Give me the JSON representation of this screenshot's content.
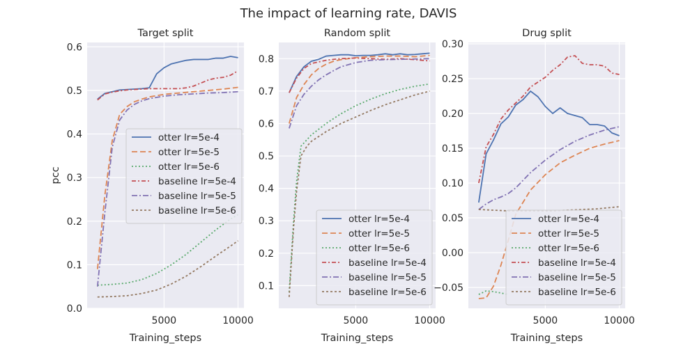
{
  "figure": {
    "title": "The impact of learning rate, DAVIS"
  },
  "chart_data": [
    {
      "type": "line",
      "title": "Target split",
      "xlabel": "Training_steps",
      "ylabel": "pcc",
      "xlim": [
        -200,
        10400
      ],
      "ylim": [
        0.0,
        0.61
      ],
      "xticks": [
        5000,
        10000
      ],
      "xtick_labels": [
        "5000",
        "10000"
      ],
      "yticks": [
        0.0,
        0.1,
        0.2,
        0.3,
        0.4,
        0.5,
        0.6
      ],
      "ytick_labels": [
        "0.0",
        "0.1",
        "0.2",
        "0.3",
        "0.4",
        "0.5",
        "0.6"
      ],
      "grid": true,
      "legend_position": "center-right",
      "series": [
        {
          "name": "otter lr=5e-4",
          "color": "#4c72b0",
          "dash": "",
          "x": [
            500,
            1000,
            1500,
            2000,
            2500,
            3000,
            3500,
            4000,
            4500,
            5000,
            5500,
            6000,
            6500,
            7000,
            7500,
            8000,
            8500,
            9000,
            9500,
            10000
          ],
          "y": [
            0.48,
            0.493,
            0.497,
            0.501,
            0.502,
            0.503,
            0.504,
            0.506,
            0.538,
            0.552,
            0.561,
            0.565,
            0.569,
            0.571,
            0.571,
            0.571,
            0.574,
            0.574,
            0.578,
            0.575
          ]
        },
        {
          "name": "otter lr=5e-5",
          "color": "#dd8452",
          "dash": "8,4",
          "x": [
            500,
            1000,
            1500,
            2000,
            2500,
            3000,
            3500,
            4000,
            5000,
            6000,
            7000,
            8000,
            9000,
            10000
          ],
          "y": [
            0.09,
            0.26,
            0.385,
            0.445,
            0.463,
            0.474,
            0.48,
            0.485,
            0.491,
            0.494,
            0.497,
            0.5,
            0.503,
            0.507
          ]
        },
        {
          "name": "otter lr=5e-6",
          "color": "#55a868",
          "dash": "2,3",
          "x": [
            500,
            1500,
            2500,
            3500,
            4500,
            5500,
            6500,
            7500,
            8500,
            9500,
            10000
          ],
          "y": [
            0.053,
            0.055,
            0.058,
            0.066,
            0.08,
            0.1,
            0.124,
            0.152,
            0.18,
            0.205,
            0.215
          ]
        },
        {
          "name": "baseline lr=5e-4",
          "color": "#c44e52",
          "dash": "6,3,2,3",
          "x": [
            500,
            1000,
            1500,
            2000,
            2500,
            3000,
            3500,
            4000,
            5000,
            6000,
            6500,
            7000,
            7500,
            8000,
            8500,
            9000,
            9500,
            10000
          ],
          "y": [
            0.478,
            0.492,
            0.496,
            0.499,
            0.501,
            0.502,
            0.503,
            0.504,
            0.504,
            0.504,
            0.506,
            0.51,
            0.517,
            0.524,
            0.528,
            0.53,
            0.535,
            0.545
          ]
        },
        {
          "name": "baseline lr=5e-5",
          "color": "#8172b3",
          "dash": "8,3,2,3",
          "x": [
            500,
            1000,
            1500,
            2000,
            2500,
            3000,
            3500,
            4000,
            5000,
            6000,
            7000,
            8000,
            9000,
            10000
          ],
          "y": [
            0.05,
            0.22,
            0.37,
            0.432,
            0.455,
            0.468,
            0.476,
            0.481,
            0.487,
            0.49,
            0.492,
            0.494,
            0.495,
            0.497
          ]
        },
        {
          "name": "baseline lr=5e-6",
          "color": "#937860",
          "dash": "3,3",
          "x": [
            500,
            1500,
            2500,
            3500,
            4500,
            5500,
            6500,
            7500,
            8500,
            9500,
            10000
          ],
          "y": [
            0.026,
            0.027,
            0.029,
            0.034,
            0.042,
            0.056,
            0.074,
            0.096,
            0.12,
            0.143,
            0.155
          ]
        }
      ]
    },
    {
      "type": "line",
      "title": "Random split",
      "xlabel": "Training_steps",
      "ylabel": "",
      "xlim": [
        -200,
        10400
      ],
      "ylim": [
        0.03,
        0.85
      ],
      "xticks": [
        5000,
        10000
      ],
      "xtick_labels": [
        "5000",
        "10000"
      ],
      "yticks": [
        0.1,
        0.2,
        0.3,
        0.4,
        0.5,
        0.6,
        0.7,
        0.8
      ],
      "ytick_labels": [
        "0.1",
        "0.2",
        "0.3",
        "0.4",
        "0.5",
        "0.6",
        "0.7",
        "0.8"
      ],
      "grid": true,
      "legend_position": "lower-right",
      "series": [
        {
          "name": "otter lr=5e-4",
          "color": "#4c72b0",
          "dash": "",
          "x": [
            500,
            1000,
            1500,
            2000,
            2500,
            3000,
            3500,
            4000,
            4500,
            5000,
            5500,
            6000,
            6500,
            7000,
            7500,
            8000,
            8500,
            9000,
            9500,
            10000
          ],
          "y": [
            0.695,
            0.745,
            0.775,
            0.792,
            0.798,
            0.808,
            0.81,
            0.812,
            0.812,
            0.809,
            0.81,
            0.81,
            0.812,
            0.815,
            0.812,
            0.815,
            0.812,
            0.813,
            0.815,
            0.817
          ]
        },
        {
          "name": "otter lr=5e-5",
          "color": "#dd8452",
          "dash": "8,4",
          "x": [
            500,
            1000,
            1500,
            2000,
            2500,
            3000,
            3500,
            4000,
            5000,
            6000,
            7000,
            8000,
            9000,
            10000
          ],
          "y": [
            0.6,
            0.68,
            0.72,
            0.75,
            0.77,
            0.783,
            0.792,
            0.797,
            0.803,
            0.806,
            0.808,
            0.808,
            0.806,
            0.81
          ]
        },
        {
          "name": "otter lr=5e-6",
          "color": "#55a868",
          "dash": "2,3",
          "x": [
            500,
            800,
            1000,
            1300,
            1700,
            2000,
            3000,
            4000,
            5000,
            6000,
            7000,
            8000,
            9000,
            10000
          ],
          "y": [
            0.08,
            0.3,
            0.42,
            0.53,
            0.55,
            0.565,
            0.6,
            0.63,
            0.655,
            0.675,
            0.692,
            0.705,
            0.715,
            0.722
          ]
        },
        {
          "name": "baseline lr=5e-4",
          "color": "#c44e52",
          "dash": "6,3,2,3",
          "x": [
            500,
            1000,
            1500,
            2000,
            2500,
            3000,
            3500,
            4000,
            5000,
            6000,
            7000,
            8000,
            9000,
            10000
          ],
          "y": [
            0.695,
            0.74,
            0.77,
            0.785,
            0.79,
            0.795,
            0.798,
            0.8,
            0.802,
            0.8,
            0.798,
            0.8,
            0.797,
            0.793
          ]
        },
        {
          "name": "baseline lr=5e-5",
          "color": "#8172b3",
          "dash": "8,3,2,3",
          "x": [
            500,
            1000,
            1500,
            2000,
            2500,
            3000,
            3500,
            4000,
            5000,
            6000,
            7000,
            8000,
            9000,
            10000
          ],
          "y": [
            0.585,
            0.655,
            0.69,
            0.715,
            0.735,
            0.75,
            0.763,
            0.775,
            0.788,
            0.795,
            0.797,
            0.798,
            0.799,
            0.8
          ]
        },
        {
          "name": "baseline lr=5e-6",
          "color": "#937860",
          "dash": "3,3",
          "x": [
            500,
            800,
            1000,
            1300,
            1700,
            2000,
            3000,
            4000,
            5000,
            6000,
            7000,
            8000,
            9000,
            10000
          ],
          "y": [
            0.065,
            0.28,
            0.39,
            0.5,
            0.53,
            0.545,
            0.575,
            0.6,
            0.62,
            0.64,
            0.658,
            0.673,
            0.688,
            0.7
          ]
        }
      ]
    },
    {
      "type": "line",
      "title": "Drug split",
      "xlabel": "Training_steps",
      "ylabel": "",
      "xlim": [
        -200,
        10400
      ],
      "ylim": [
        -0.08,
        0.302
      ],
      "xticks": [
        5000,
        10000
      ],
      "xtick_labels": [
        "5000",
        "10000"
      ],
      "yticks": [
        -0.05,
        0.0,
        0.05,
        0.1,
        0.15,
        0.2,
        0.25,
        0.3
      ],
      "ytick_labels": [
        "−0.05",
        "0.00",
        "0.05",
        "0.10",
        "0.15",
        "0.20",
        "0.25",
        "0.30"
      ],
      "grid": true,
      "legend_position": "lower-right",
      "series": [
        {
          "name": "otter lr=5e-4",
          "color": "#4c72b0",
          "dash": "",
          "x": [
            500,
            1000,
            1500,
            2000,
            2500,
            3000,
            3500,
            4000,
            4500,
            5000,
            5500,
            6000,
            6500,
            7000,
            7500,
            8000,
            8500,
            9000,
            9500,
            10000
          ],
          "y": [
            0.072,
            0.142,
            0.162,
            0.185,
            0.195,
            0.212,
            0.22,
            0.232,
            0.224,
            0.21,
            0.2,
            0.208,
            0.2,
            0.197,
            0.194,
            0.184,
            0.184,
            0.182,
            0.172,
            0.168
          ]
        },
        {
          "name": "otter lr=5e-5",
          "color": "#dd8452",
          "dash": "8,4",
          "x": [
            500,
            1000,
            1500,
            2000,
            2500,
            3000,
            4000,
            5000,
            6000,
            7000,
            8000,
            9000,
            10000
          ],
          "y": [
            -0.066,
            -0.065,
            -0.048,
            -0.018,
            0.018,
            0.055,
            0.09,
            0.112,
            0.129,
            0.14,
            0.15,
            0.156,
            0.161
          ]
        },
        {
          "name": "otter lr=5e-6",
          "color": "#55a868",
          "dash": "2,3",
          "x": [
            500,
            1000,
            1500,
            2000,
            2500
          ],
          "y": [
            -0.06,
            -0.055,
            -0.056,
            -0.058,
            -0.06
          ]
        },
        {
          "name": "baseline lr=5e-4",
          "color": "#c44e52",
          "dash": "6,3,2,3",
          "x": [
            500,
            1000,
            1500,
            2000,
            2500,
            3000,
            3500,
            4000,
            4500,
            5000,
            5500,
            6000,
            6500,
            7000,
            7500,
            8000,
            8500,
            9000,
            9500,
            10000
          ],
          "y": [
            0.1,
            0.152,
            0.17,
            0.192,
            0.205,
            0.215,
            0.225,
            0.238,
            0.245,
            0.252,
            0.262,
            0.27,
            0.281,
            0.283,
            0.272,
            0.27,
            0.27,
            0.268,
            0.258,
            0.256
          ]
        },
        {
          "name": "baseline lr=5e-5",
          "color": "#8172b3",
          "dash": "8,3,2,3",
          "x": [
            500,
            1000,
            1500,
            2000,
            2500,
            3000,
            4000,
            5000,
            6000,
            7000,
            8000,
            9000,
            10000
          ],
          "y": [
            0.062,
            0.07,
            0.076,
            0.08,
            0.085,
            0.093,
            0.115,
            0.133,
            0.148,
            0.16,
            0.169,
            0.176,
            0.181
          ]
        },
        {
          "name": "baseline lr=5e-6",
          "color": "#937860",
          "dash": "3,3",
          "x": [
            500,
            1500,
            2500,
            3500,
            4500,
            5500,
            6500,
            7500,
            8500,
            9500,
            10000
          ],
          "y": [
            0.062,
            0.061,
            0.06,
            0.06,
            0.06,
            0.06,
            0.061,
            0.062,
            0.063,
            0.065,
            0.066
          ]
        }
      ]
    }
  ]
}
